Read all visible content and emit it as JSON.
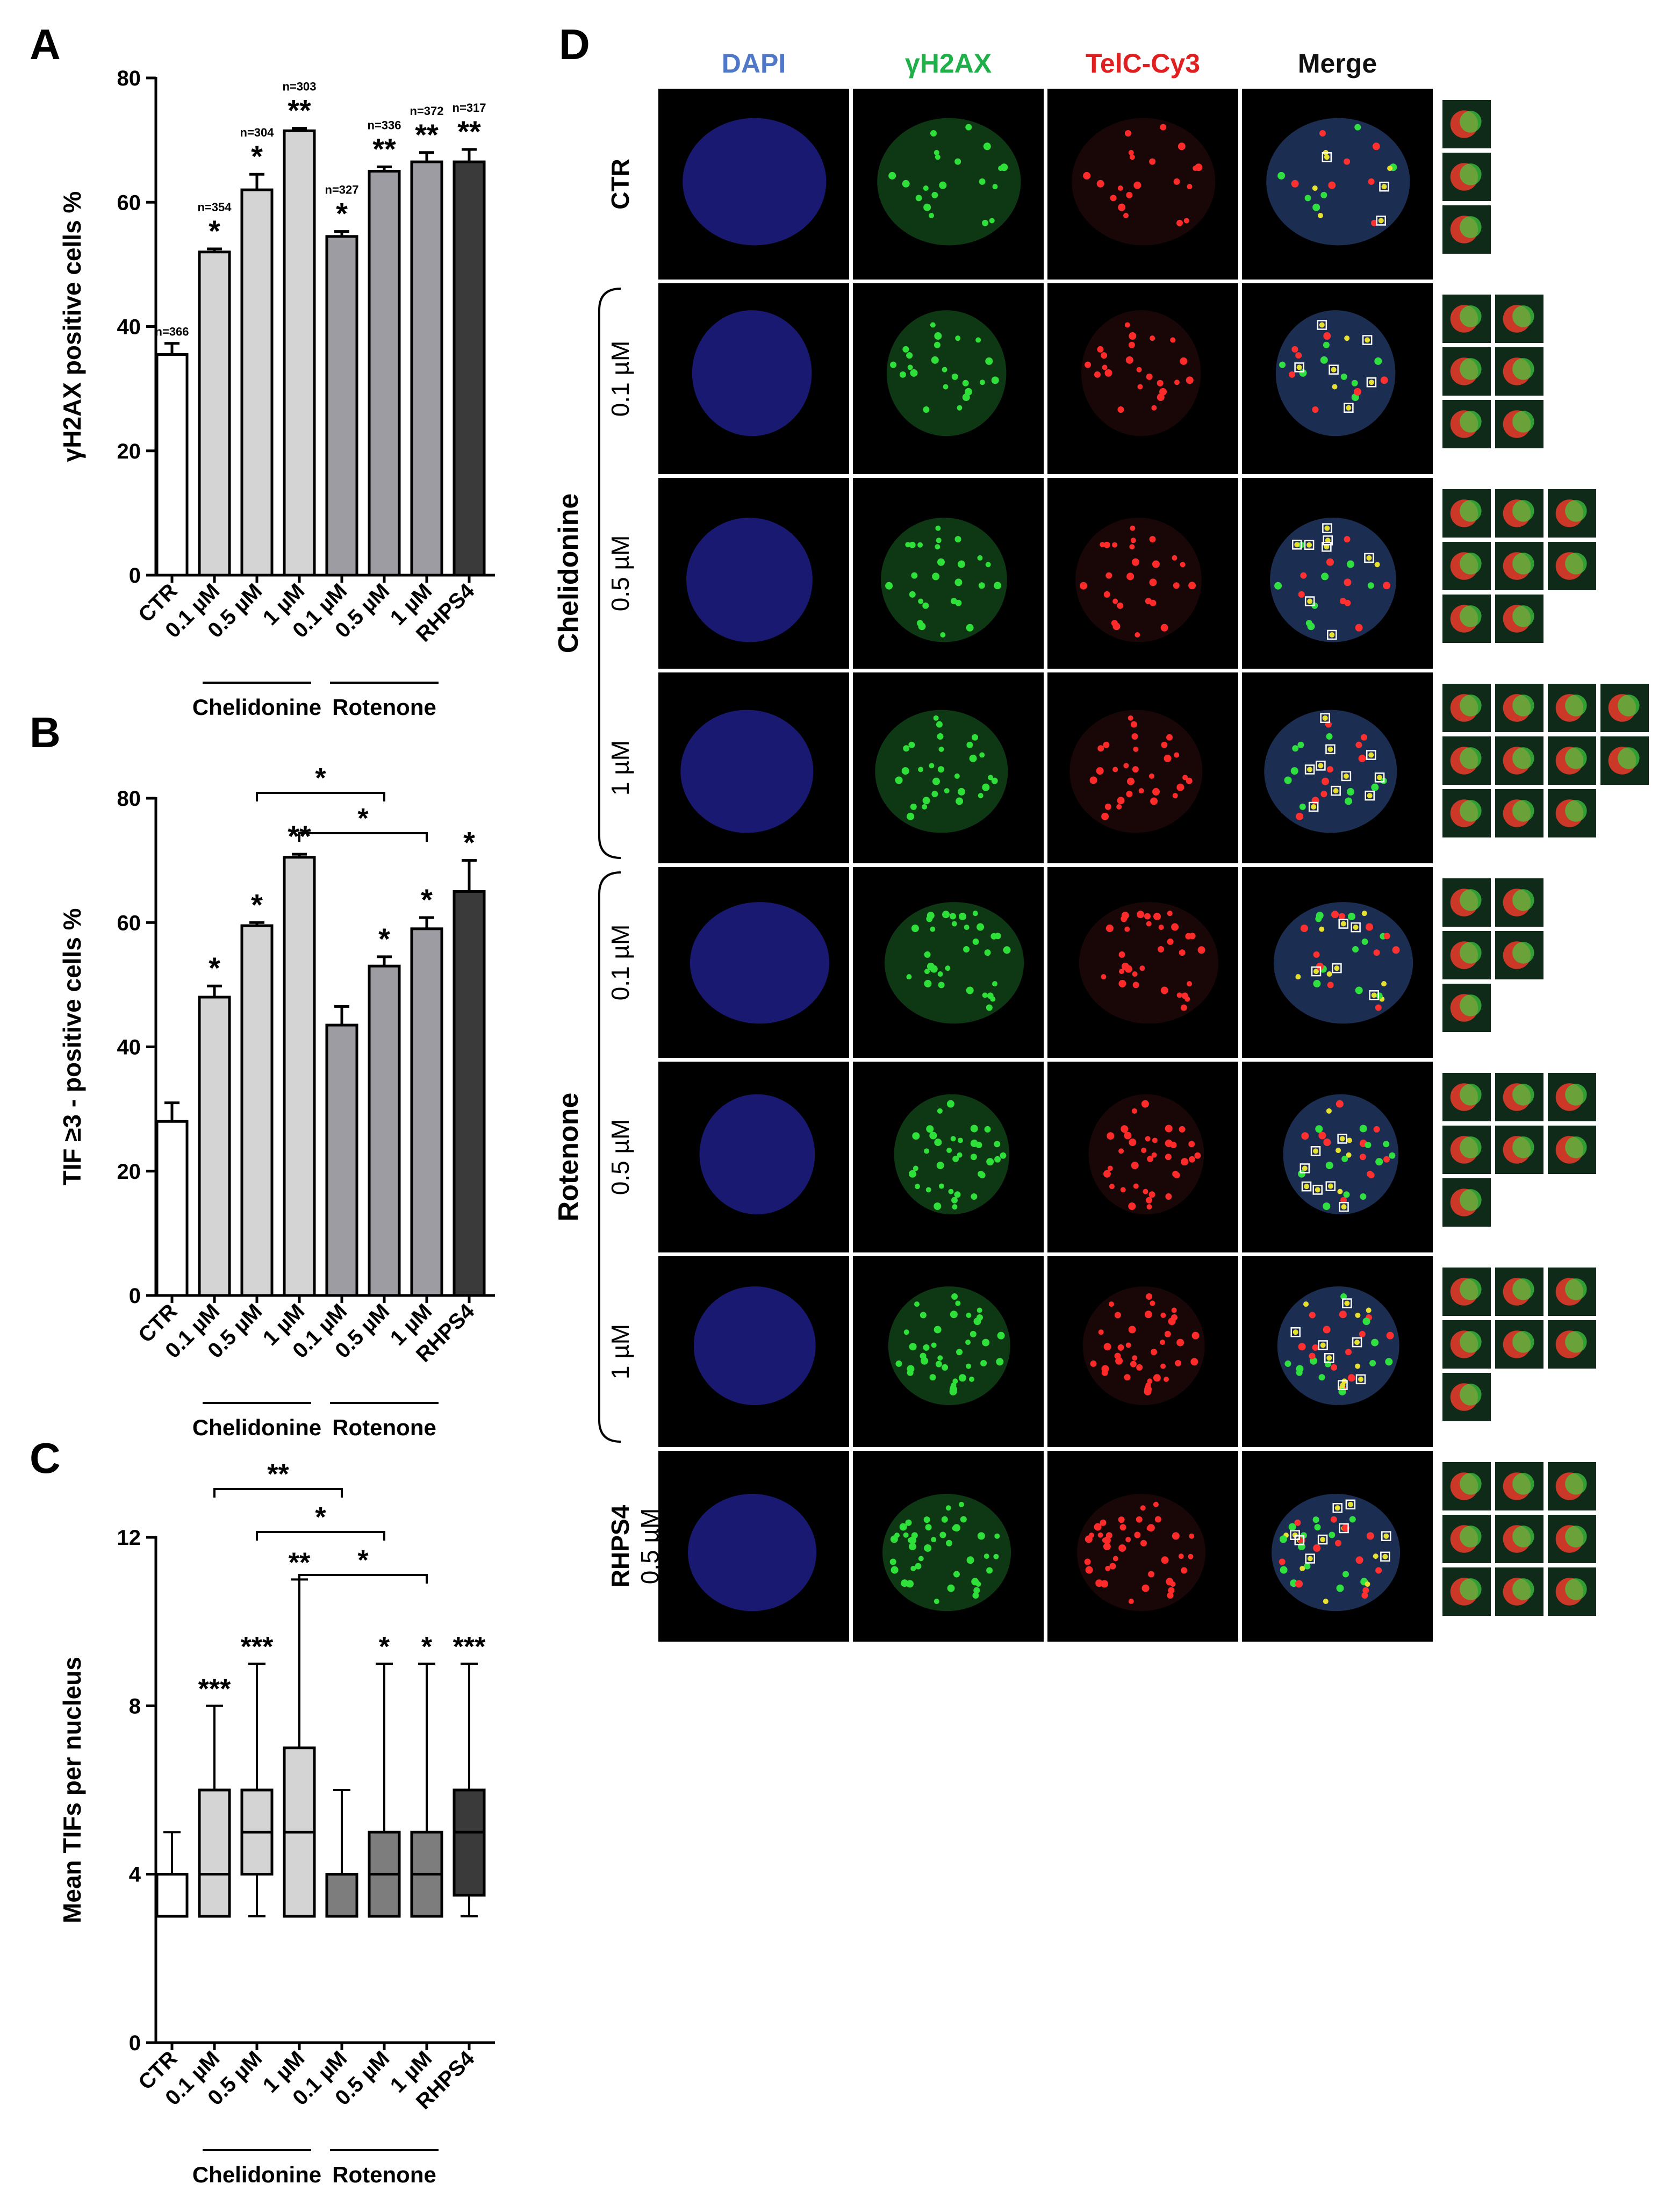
{
  "panels": {
    "A": {
      "letter": "A",
      "chart_data": {
        "type": "bar",
        "ylabel": "γH2AX positive cells %",
        "ylim": [
          0,
          80
        ],
        "yticks": [
          0,
          20,
          40,
          60,
          80
        ],
        "categories": [
          "CTR",
          "0.1 µM",
          "0.5 µM",
          "1 µM",
          "0.1 µM",
          "0.5 µM",
          "1 µM",
          "RHPS4"
        ],
        "values": [
          35.5,
          52,
          62,
          71.5,
          54.5,
          65,
          66.5,
          66.5
        ],
        "errors": [
          1.8,
          0.5,
          2.5,
          0.4,
          0.8,
          0.7,
          1.5,
          2.0
        ],
        "colors": [
          "#ffffff",
          "#d4d4d4",
          "#d4d4d4",
          "#d4d4d4",
          "#9c9ca2",
          "#9c9ca2",
          "#9c9ca2",
          "#3a3a3a"
        ],
        "sig": [
          "",
          "*",
          "*",
          "**",
          "*",
          "**",
          "**",
          "**"
        ],
        "n_labels": [
          "n=366",
          "n=354",
          "n=304",
          "n=303",
          "n=327",
          "n=336",
          "n=372",
          "n=317"
        ],
        "groups": [
          {
            "label": "Chelidonine",
            "from": 1,
            "to": 3
          },
          {
            "label": "Rotenone",
            "from": 4,
            "to": 6
          }
        ]
      }
    },
    "B": {
      "letter": "B",
      "chart_data": {
        "type": "bar",
        "ylabel": "TIF ≥3 - positive cells %",
        "ylim": [
          0,
          80
        ],
        "yticks": [
          0,
          20,
          40,
          60,
          80
        ],
        "categories": [
          "CTR",
          "0.1 µM",
          "0.5 µM",
          "1 µM",
          "0.1 µM",
          "0.5 µM",
          "1 µM",
          "RHPS4"
        ],
        "values": [
          28,
          48,
          59.5,
          70.5,
          43.5,
          53,
          59,
          65
        ],
        "errors": [
          3,
          1.8,
          0.5,
          0.5,
          3,
          1.5,
          1.8,
          5
        ],
        "colors": [
          "#ffffff",
          "#d4d4d4",
          "#d4d4d4",
          "#d4d4d4",
          "#9c9ca2",
          "#9c9ca2",
          "#9c9ca2",
          "#3a3a3a"
        ],
        "sig": [
          "",
          "*",
          "*",
          "**",
          "",
          "*",
          "*",
          "*"
        ],
        "brackets": [
          {
            "from": 2,
            "to": 5,
            "label": "*"
          },
          {
            "from": 3,
            "to": 6,
            "label": "*"
          }
        ],
        "groups": [
          {
            "label": "Chelidonine",
            "from": 1,
            "to": 3
          },
          {
            "label": "Rotenone",
            "from": 4,
            "to": 6
          }
        ]
      }
    },
    "C": {
      "letter": "C",
      "chart_data": {
        "type": "box",
        "ylabel": "Mean TIFs per nucleus",
        "ylim": [
          0,
          12
        ],
        "yticks": [
          0,
          4,
          8,
          12
        ],
        "categories": [
          "CTR",
          "0.1 µM",
          "0.5 µM",
          "1 µM",
          "0.1 µM",
          "0.5 µM",
          "1 µM",
          "RHPS4"
        ],
        "boxes": [
          {
            "min": 3,
            "q1": 3,
            "median": 4,
            "q3": 4,
            "max": 5
          },
          {
            "min": 3,
            "q1": 3,
            "median": 4,
            "q3": 6,
            "max": 8
          },
          {
            "min": 3,
            "q1": 4,
            "median": 5,
            "q3": 6,
            "max": 9
          },
          {
            "min": 3,
            "q1": 3,
            "median": 5,
            "q3": 7,
            "max": 11
          },
          {
            "min": 3,
            "q1": 3,
            "median": 4,
            "q3": 4,
            "max": 6
          },
          {
            "min": 3,
            "q1": 3,
            "median": 4,
            "q3": 5,
            "max": 9
          },
          {
            "min": 3,
            "q1": 3,
            "median": 4,
            "q3": 5,
            "max": 9
          },
          {
            "min": 3,
            "q1": 3.5,
            "median": 5,
            "q3": 6,
            "max": 9
          }
        ],
        "colors": [
          "#ffffff",
          "#d4d4d4",
          "#d4d4d4",
          "#d4d4d4",
          "#7d7d7d",
          "#7d7d7d",
          "#7d7d7d",
          "#3a3a3a"
        ],
        "sig": [
          "",
          "***",
          "***",
          "**",
          "",
          "*",
          "*",
          "***"
        ],
        "brackets": [
          {
            "from": 1,
            "to": 4,
            "label": "**"
          },
          {
            "from": 2,
            "to": 5,
            "label": "*"
          },
          {
            "from": 3,
            "to": 6,
            "label": "*"
          }
        ],
        "groups": [
          {
            "label": "Chelidonine",
            "from": 1,
            "to": 3
          },
          {
            "label": "Rotenone",
            "from": 4,
            "to": 6
          }
        ]
      }
    },
    "D": {
      "letter": "D",
      "columns": [
        "DAPI",
        "γH2AX",
        "TelC-Cy3",
        "Merge"
      ],
      "column_colors": [
        "#4f78c9",
        "#1fb04a",
        "#e02020",
        "#111111"
      ],
      "groups": [
        {
          "label": "Chelidonine",
          "from": 1,
          "to": 3
        },
        {
          "label": "Rotenone",
          "from": 4,
          "to": 6
        }
      ],
      "rows": [
        {
          "label": "CTR",
          "sublabel": "",
          "insets": 3,
          "inset_cols": 1
        },
        {
          "label": "0.1 µM",
          "sublabel": "",
          "insets": 6,
          "inset_cols": 2
        },
        {
          "label": "0.5 µM",
          "sublabel": "",
          "insets": 8,
          "inset_cols": 3
        },
        {
          "label": "1 µM",
          "sublabel": "",
          "insets": 11,
          "inset_cols": 4
        },
        {
          "label": "0.1 µM",
          "sublabel": "",
          "insets": 5,
          "inset_cols": 2
        },
        {
          "label": "0.5 µM",
          "sublabel": "",
          "insets": 7,
          "inset_cols": 3
        },
        {
          "label": "1 µM",
          "sublabel": "",
          "insets": 7,
          "inset_cols": 3
        },
        {
          "label": "RHPS4",
          "sublabel": "0.5 µM",
          "insets": 9,
          "inset_cols": 3
        }
      ]
    }
  }
}
